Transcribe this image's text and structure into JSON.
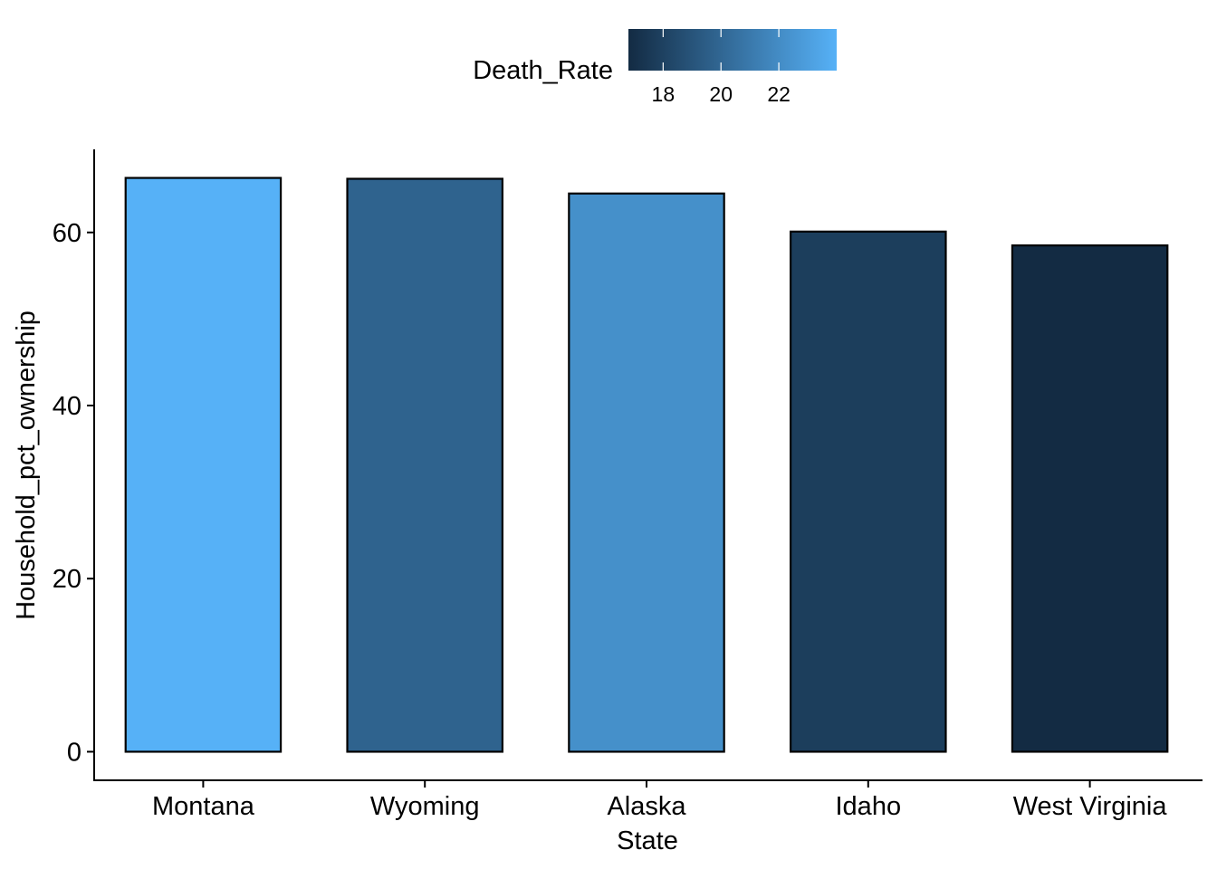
{
  "chart_data": {
    "type": "bar",
    "xlabel": "State",
    "ylabel": "Household_pct_ownership",
    "categories": [
      "Montana",
      "Wyoming",
      "Alaska",
      "Idaho",
      "West Virginia"
    ],
    "values": [
      66.3,
      66.2,
      64.5,
      60.1,
      58.5
    ],
    "fill_values": [
      24.0,
      19.8,
      22.2,
      17.8,
      16.8
    ],
    "ylim": [
      -3.3,
      69.6
    ],
    "yticks": [
      0,
      20,
      40,
      60
    ],
    "grid": false,
    "legend": {
      "title": "Death_Rate",
      "placement": "top",
      "range": [
        16.8,
        24.0
      ],
      "ticks": [
        18,
        20,
        22
      ],
      "color_low": "#132B43",
      "color_high": "#56B1F7"
    }
  }
}
